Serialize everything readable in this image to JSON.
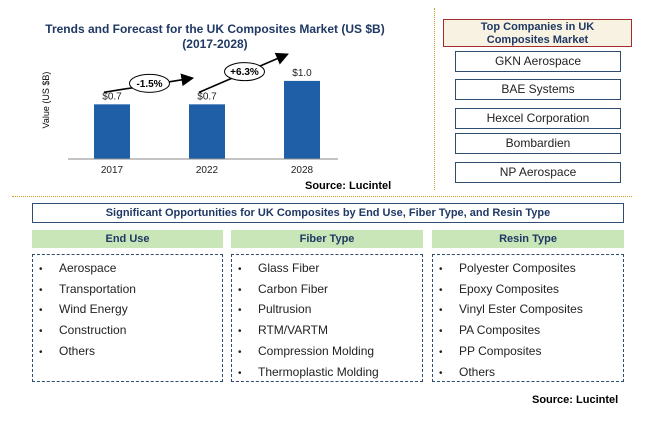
{
  "chart": {
    "title_line1": "Trends and Forecast for the UK  Composites Market (US $B)",
    "title_line2": "(2017-2028)",
    "ylabel": "Value (US $B)",
    "source": "Source: Lucintel",
    "growth_labels": [
      "-1.5%",
      "+6.3%"
    ]
  },
  "chart_data": {
    "type": "bar",
    "title": "Trends and Forecast for the UK  Composites Market (US $B) (2017-2028)",
    "categories": [
      "2017",
      "2022",
      "2028"
    ],
    "values": [
      0.7,
      0.7,
      1.0
    ],
    "value_labels": [
      "$0.7",
      "$0.7",
      "$1.0"
    ],
    "ylabel": "Value (US $B)",
    "xlabel": "",
    "ylim": [
      0,
      1.05
    ],
    "bar_color": "#1f5fa8",
    "grid": false,
    "annotations": [
      "-1.5%",
      "+6.3%"
    ]
  },
  "companies": {
    "title_line1": "Top Companies in UK",
    "title_line2": "Composites  Market",
    "items": [
      "GKN Aerospace",
      "BAE Systems",
      "Hexcel Corporation",
      "Bombardien",
      "NP Aerospace"
    ]
  },
  "opportunities": {
    "title": "Significant Opportunities for UK Composites  by End Use, Fiber Type, and Resin Type",
    "columns": [
      {
        "header": "End Use",
        "items": [
          "Aerospace",
          "Transportation",
          "Wind Energy",
          "Construction",
          "Others"
        ]
      },
      {
        "header": "Fiber Type",
        "items": [
          "Glass Fiber",
          "Carbon Fiber",
          "Pultrusion",
          "RTM/VARTM",
          "Compression Molding",
          "Thermoplastic Molding"
        ]
      },
      {
        "header": "Resin Type",
        "items": [
          "Polyester Composites",
          "Epoxy Composites",
          "Vinyl Ester Composites",
          "PA  Composites",
          "PP Composites",
          "Others"
        ]
      }
    ],
    "bullet": "•",
    "source": "Source: Lucintel"
  },
  "colors": {
    "bar": "#1f5fa8",
    "title": "#1f3864",
    "header_fill": "#c9e6b9",
    "divider": "#c8a020"
  }
}
